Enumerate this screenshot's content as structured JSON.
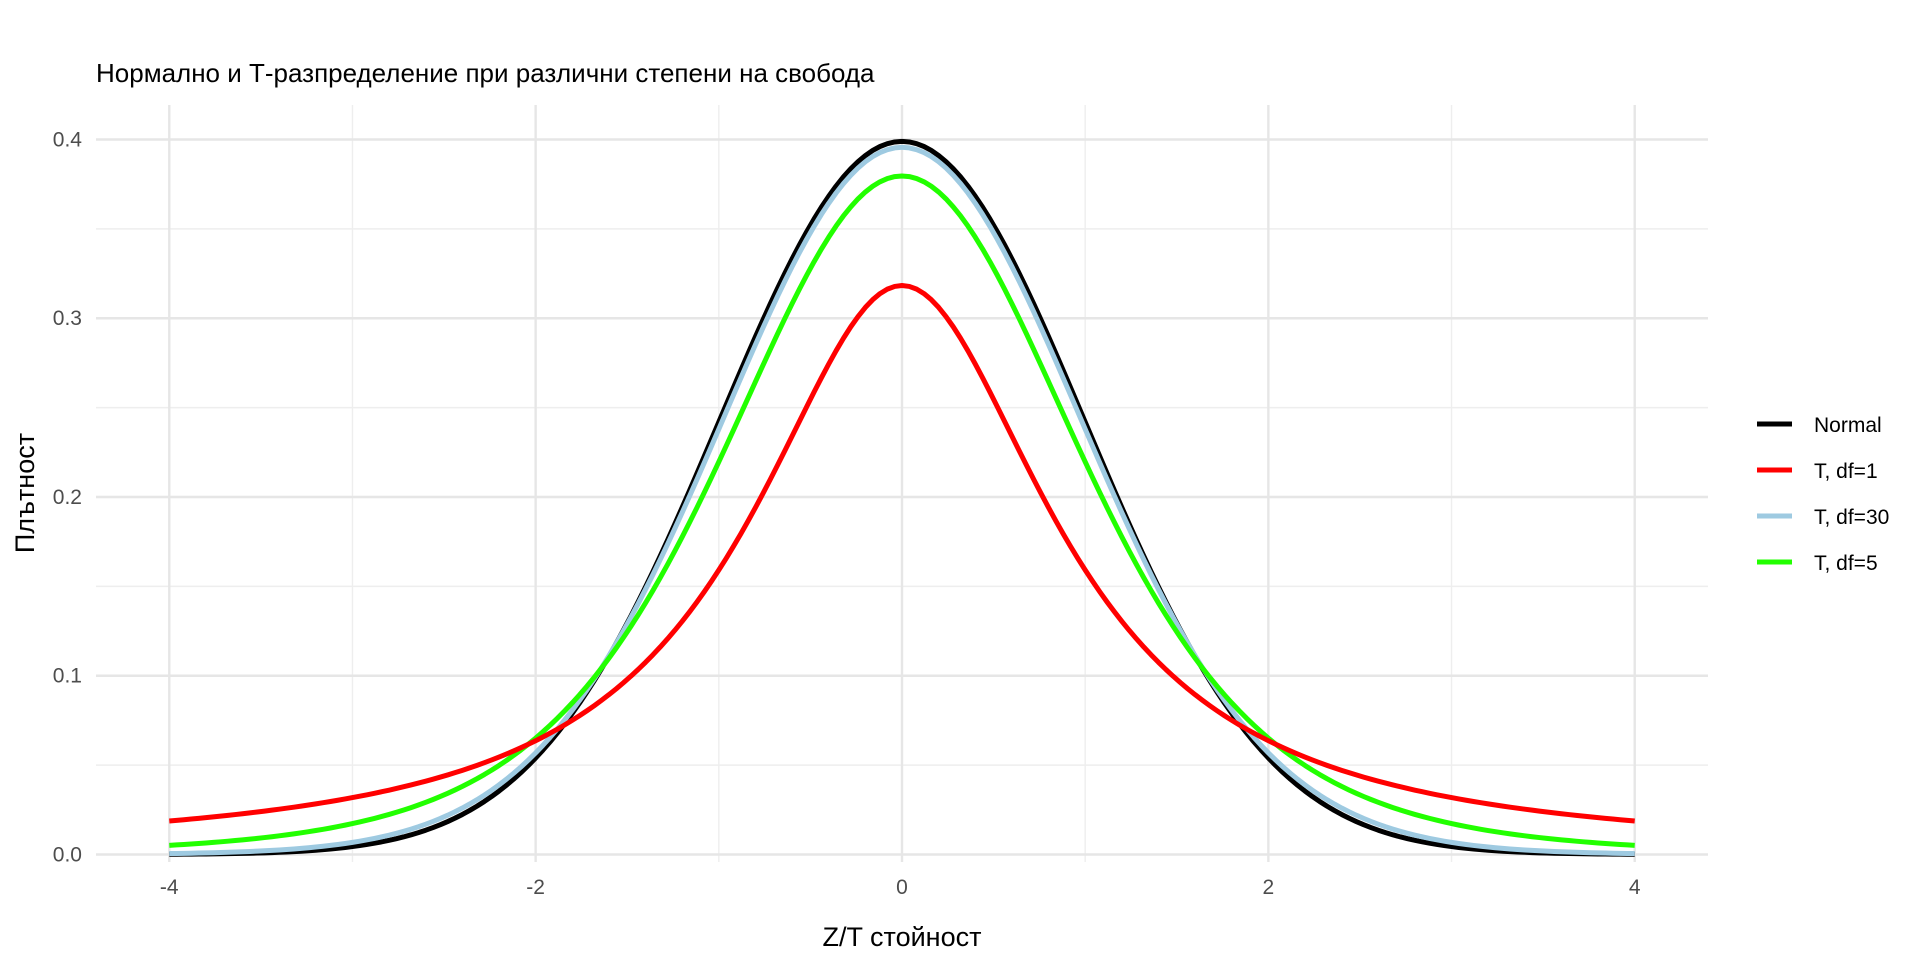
{
  "chart_data": {
    "type": "line",
    "title": "Нормално и Т-разпределение при различни степени на свобода",
    "xlabel": "Z/T стойност",
    "ylabel": "Плътност",
    "xlim": [
      -4.4,
      4.4
    ],
    "ylim": [
      -0.0,
      0.42
    ],
    "x_ticks": [
      -4,
      -2,
      0,
      2,
      4
    ],
    "y_ticks": [
      0.0,
      0.1,
      0.2,
      0.3,
      0.4
    ],
    "x_tick_labels": [
      "-4",
      "-2",
      "0",
      "2",
      "4"
    ],
    "y_tick_labels": [
      "0.0",
      "0.1",
      "0.2",
      "0.3",
      "0.4"
    ],
    "grid": true,
    "legend_position": "right",
    "series": [
      {
        "name": "Normal",
        "color": "#000000",
        "distribution": "normal",
        "x": [
          -4,
          -3,
          -2,
          -1.5,
          -1,
          -0.5,
          0,
          0.5,
          1,
          1.5,
          2,
          3,
          4
        ],
        "y": [
          0.0001,
          0.0044,
          0.054,
          0.1295,
          0.242,
          0.3521,
          0.3989,
          0.3521,
          0.242,
          0.1295,
          0.054,
          0.0044,
          0.0001
        ]
      },
      {
        "name": "T, df=1",
        "color": "#ff0000",
        "distribution": "t",
        "df": 1,
        "x": [
          -4,
          -3,
          -2,
          -1.5,
          -1,
          -0.5,
          0,
          0.5,
          1,
          1.5,
          2,
          3,
          4
        ],
        "y": [
          0.0187,
          0.0318,
          0.0637,
          0.0979,
          0.1592,
          0.2546,
          0.3183,
          0.2546,
          0.1592,
          0.0979,
          0.0637,
          0.0318,
          0.0187
        ]
      },
      {
        "name": "T, df=30",
        "color": "#9ecae1",
        "distribution": "t",
        "df": 30,
        "x": [
          -4,
          -3,
          -2,
          -1.5,
          -1,
          -0.5,
          0,
          0.5,
          1,
          1.5,
          2,
          3,
          4
        ],
        "y": [
          0.0003,
          0.0059,
          0.0573,
          0.1298,
          0.2385,
          0.3476,
          0.3956,
          0.3476,
          0.2385,
          0.1298,
          0.0573,
          0.0059,
          0.0003
        ]
      },
      {
        "name": "T, df=5",
        "color": "#22ff00",
        "distribution": "t",
        "df": 5,
        "x": [
          -4,
          -3,
          -2,
          -1.5,
          -1,
          -0.5,
          0,
          0.5,
          1,
          1.5,
          2,
          3,
          4
        ],
        "y": [
          0.0051,
          0.0173,
          0.0651,
          0.1245,
          0.2197,
          0.3279,
          0.3796,
          0.3279,
          0.2197,
          0.1245,
          0.0651,
          0.0173,
          0.0051
        ]
      }
    ]
  }
}
